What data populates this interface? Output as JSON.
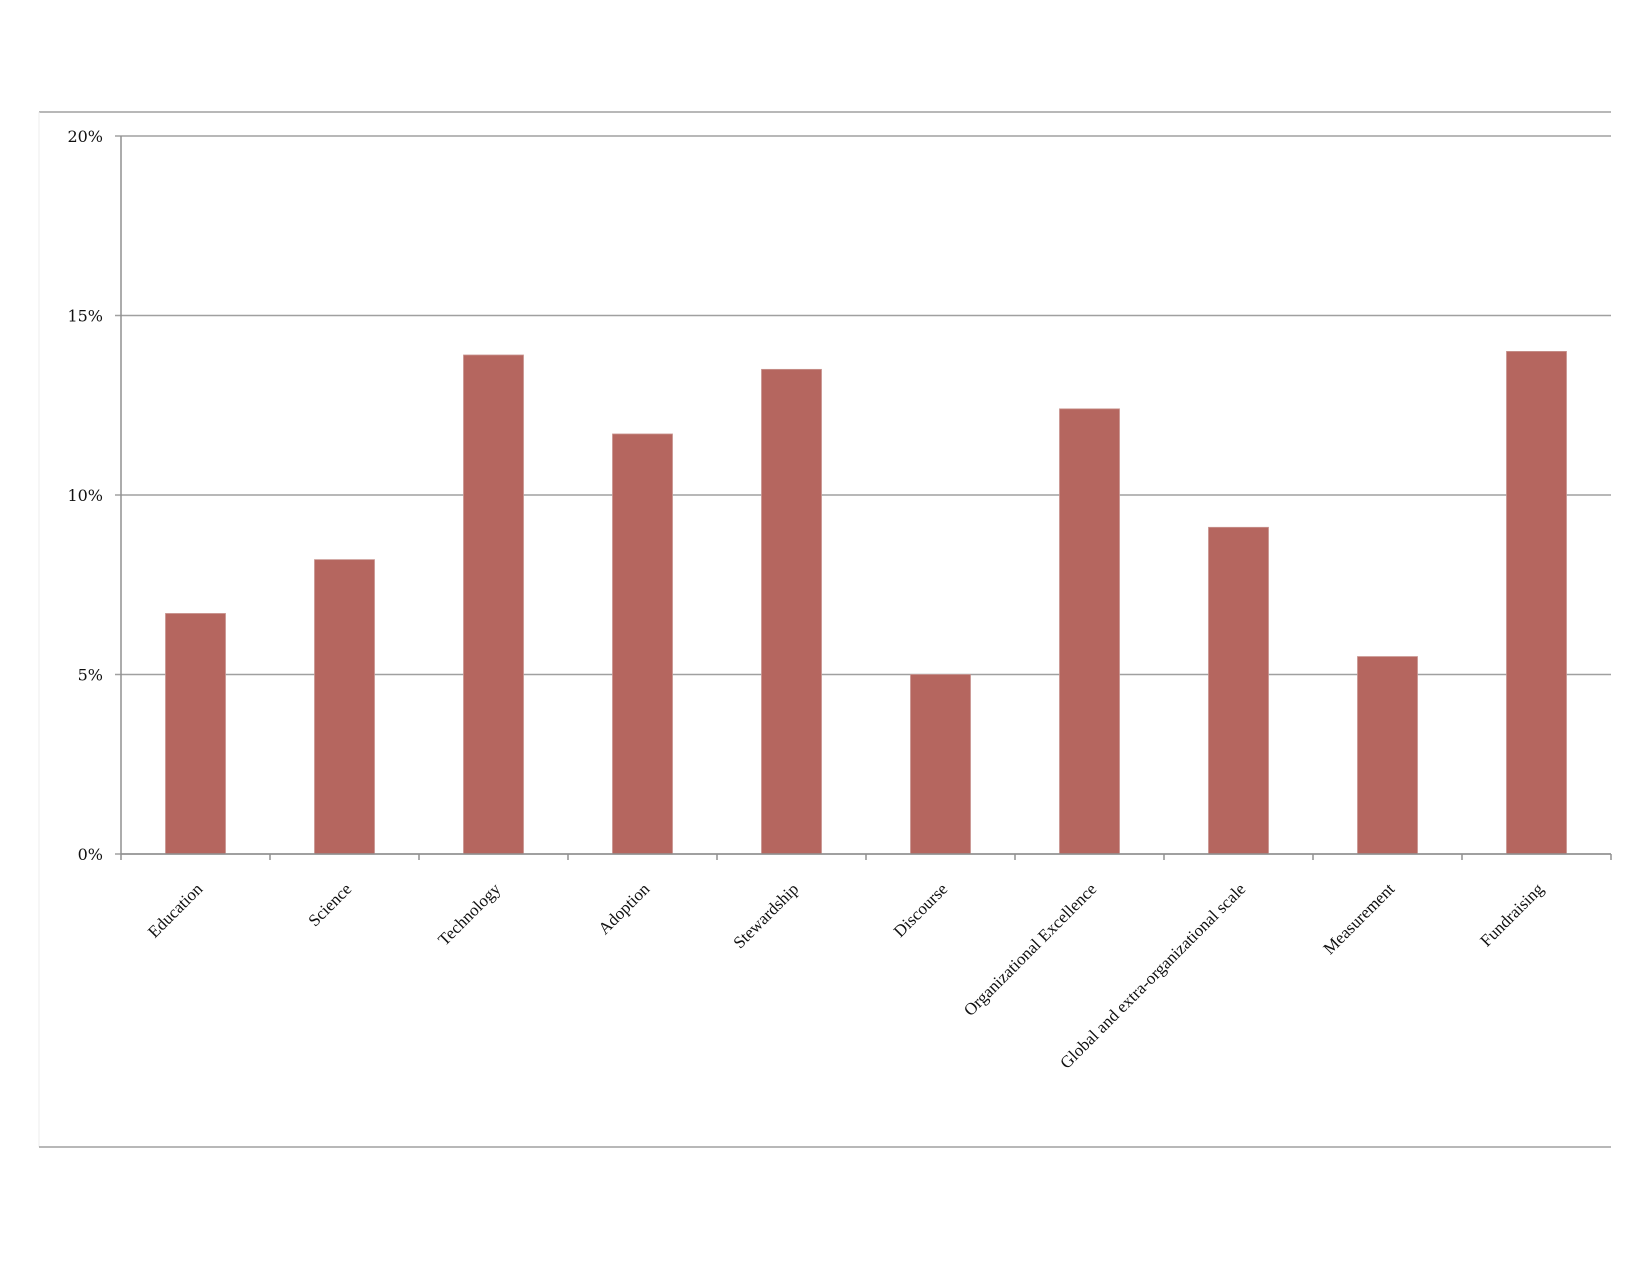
{
  "chart_data": {
    "type": "bar",
    "title": "",
    "xlabel": "",
    "ylabel": "",
    "categories": [
      "Education",
      "Science",
      "Technology",
      "Adoption",
      "Stewardship",
      "Discourse",
      "Organizational Excellence",
      "Global and extra-organizational scale",
      "Measurement",
      "Fundraising"
    ],
    "values": [
      6.7,
      8.2,
      13.9,
      11.7,
      13.5,
      5.0,
      12.4,
      9.1,
      5.5,
      14.0
    ],
    "value_unit": "%",
    "ylim": [
      0,
      20
    ],
    "yticks": [
      0,
      5,
      10,
      15,
      20
    ],
    "ytick_labels": [
      "0%",
      "5%",
      "10%",
      "15%",
      "20%"
    ],
    "grid": true,
    "legend": "none",
    "bar_color": "#b5665f"
  }
}
